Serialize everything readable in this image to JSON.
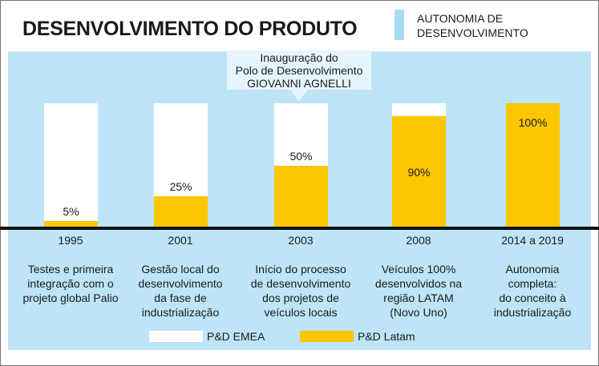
{
  "title": "DESENVOLVIMENTO DO PRODUTO",
  "autonomy_legend": {
    "line1": "AUTONOMIA DE",
    "line2": "DESENVOLVIMENTO",
    "color": "#a8dcf5"
  },
  "callout": {
    "line1": "Inauguração do",
    "line2": "Polo de Desenvolvimento",
    "line3": "GIOVANNI AGNELLI"
  },
  "chart_data": {
    "type": "bar",
    "stacked": true,
    "title": "DESENVOLVIMENTO DO PRODUTO",
    "categories": [
      "1995",
      "2001",
      "2003",
      "2008",
      "2014 a 2019"
    ],
    "series": [
      {
        "name": "P&D Latam",
        "color": "#fcc600",
        "values": [
          5,
          25,
          50,
          90,
          100
        ]
      },
      {
        "name": "P&D EMEA",
        "color": "#ffffff",
        "values": [
          95,
          75,
          50,
          10,
          0
        ]
      }
    ],
    "labels": [
      "5%",
      "25%",
      "50%",
      "90%",
      "100%"
    ],
    "descriptions": [
      [
        "Testes e primeira",
        "integração com o",
        "projeto global Palio"
      ],
      [
        "Gestão local do",
        "desenvolvimento",
        "da fase de",
        "industrialização"
      ],
      [
        "Início do processo",
        "de desenvolvimento",
        "dos projetos de",
        "veículos locais"
      ],
      [
        "Veículos 100%",
        "desenvolvidos na",
        "região LATAM",
        "(Novo Uno)"
      ],
      [
        "Autonomia",
        "completa:",
        "do conceito à",
        "industrialização"
      ]
    ],
    "ylim": [
      0,
      100
    ],
    "legend": [
      "P&D EMEA",
      "P&D Latam"
    ],
    "legend_position": "bottom"
  }
}
